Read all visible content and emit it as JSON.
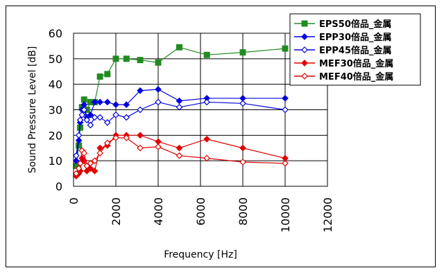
{
  "chart_data": {
    "type": "line",
    "xlabel": "Frequency [Hz]",
    "ylabel": "Sound Pressure Level [dB]",
    "xlim": [
      0,
      12000
    ],
    "ylim": [
      0,
      60
    ],
    "xticks": [
      "0",
      "2000",
      "4000",
      "6000",
      "8000",
      "10000",
      "12000"
    ],
    "yticks": [
      "0",
      "10",
      "20",
      "30",
      "40",
      "50",
      "60"
    ],
    "grid": true,
    "legend_position": "top-right",
    "series": [
      {
        "name": "EPS50倍品_金属",
        "color": "#218b21",
        "marker": "square-filled",
        "x": [
          125,
          250,
          315,
          400,
          500,
          630,
          800,
          1000,
          1250,
          1600,
          2000,
          2500,
          3150,
          4000,
          5000,
          6300,
          8000,
          10000
        ],
        "y": [
          8,
          16,
          23,
          31,
          34,
          30,
          33,
          33,
          43,
          44,
          50,
          50,
          49.5,
          48.5,
          54.5,
          51.5,
          52.5,
          54
        ]
      },
      {
        "name": "EPP30倍品_金属",
        "color": "#0000dd",
        "marker": "diamond-filled",
        "x": [
          125,
          250,
          315,
          400,
          500,
          630,
          800,
          1000,
          1250,
          1600,
          2000,
          2500,
          3150,
          4000,
          5000,
          6300,
          8000,
          10000
        ],
        "y": [
          10,
          18,
          25,
          30,
          32,
          27,
          28,
          33,
          33,
          33,
          32,
          32,
          37.5,
          38,
          33.5,
          34.5,
          34.5,
          34.5
        ]
      },
      {
        "name": "EPP45倍品_金属",
        "color": "#0000dd",
        "marker": "diamond-open",
        "x": [
          125,
          250,
          315,
          400,
          500,
          630,
          800,
          1000,
          1250,
          1600,
          2000,
          2500,
          3150,
          4000,
          5000,
          6300,
          8000,
          10000
        ],
        "y": [
          12,
          20,
          26,
          28,
          30,
          26,
          24,
          27,
          27,
          25,
          28,
          27,
          30,
          33,
          31,
          33,
          32.5,
          30
        ]
      },
      {
        "name": "MEF30倍品_金属",
        "color": "#e00000",
        "marker": "diamond-filled",
        "x": [
          125,
          250,
          315,
          400,
          500,
          630,
          800,
          1000,
          1250,
          1600,
          2000,
          2500,
          3150,
          4000,
          5000,
          6300,
          8000,
          10000
        ],
        "y": [
          4,
          5,
          6,
          11,
          10,
          6,
          7,
          6,
          15,
          16,
          20,
          20,
          20,
          17.5,
          15,
          18.5,
          15,
          11
        ]
      },
      {
        "name": "MEF40倍品_金属",
        "color": "#e00000",
        "marker": "diamond-open",
        "x": [
          125,
          250,
          315,
          400,
          500,
          630,
          800,
          1000,
          1250,
          1600,
          2000,
          2500,
          3150,
          4000,
          5000,
          6300,
          8000,
          10000
        ],
        "y": [
          5,
          7,
          9,
          14,
          13,
          8,
          9,
          10,
          13,
          17,
          19,
          19,
          15,
          15.5,
          12,
          11,
          9.5,
          9
        ]
      }
    ]
  }
}
